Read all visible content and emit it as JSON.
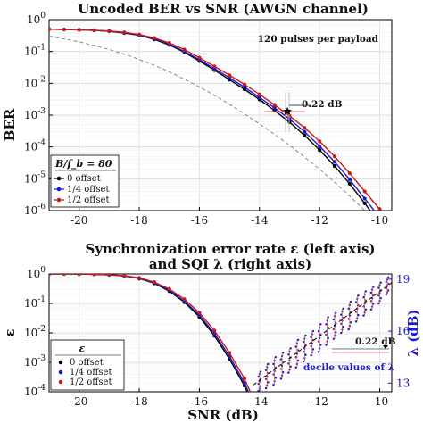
{
  "chart_data": [
    {
      "type": "line",
      "title": "Uncoded BER vs SNR  (AWGN channel)",
      "xlabel": "",
      "ylabel": "BER",
      "yscale": "log",
      "xlim": [
        -21,
        -9.6
      ],
      "ylim": [
        1e-06,
        1
      ],
      "x_ticks": [
        "-20",
        "-18",
        "-16",
        "-14",
        "-12",
        "-10"
      ],
      "y_ticks": [
        "10^0",
        "10^-1",
        "10^-2",
        "10^-3",
        "10^-4",
        "10^-5",
        "10^-6"
      ],
      "grid": true,
      "legend": "bottom-left",
      "legend_title": "B/f_b = 80",
      "annotations": [
        "120 pulses per payload",
        "0.22 dB"
      ],
      "marker_point": {
        "x": -13,
        "y": 0.0012
      },
      "x": [
        -21,
        -20.5,
        -20,
        -19.5,
        -19,
        -18.5,
        -18,
        -17.5,
        -17,
        -16.5,
        -16,
        -15.5,
        -15,
        -14.5,
        -14,
        -13.5,
        -13,
        -12.5,
        -12,
        -11.5,
        -11,
        -10.5,
        -10
      ],
      "series": [
        {
          "name": "0 offset",
          "color": "#000000",
          "values": [
            0.5,
            0.49,
            0.48,
            0.46,
            0.43,
            0.38,
            0.32,
            0.24,
            0.16,
            0.095,
            0.05,
            0.026,
            0.013,
            0.0065,
            0.0031,
            0.0014,
            0.0006,
            0.00023,
            8e-05,
            2.5e-05,
            7e-06,
            1.7e-06,
            4e-07
          ]
        },
        {
          "name": "1/4 offset",
          "color": "#1a1acc",
          "values": [
            0.5,
            0.49,
            0.48,
            0.46,
            0.435,
            0.39,
            0.33,
            0.25,
            0.17,
            0.1,
            0.055,
            0.029,
            0.015,
            0.0076,
            0.0036,
            0.0017,
            0.00075,
            0.0003,
            0.000105,
            3.4e-05,
            9.5e-06,
            2.4e-06,
            6e-07
          ]
        },
        {
          "name": "1/2 offset",
          "color": "#cc1a1a",
          "values": [
            0.5,
            0.49,
            0.48,
            0.465,
            0.44,
            0.4,
            0.34,
            0.265,
            0.185,
            0.115,
            0.064,
            0.034,
            0.018,
            0.0092,
            0.0045,
            0.0021,
            0.00095,
            0.0004,
            0.00015,
            5e-05,
            1.5e-05,
            4e-06,
            1.1e-06
          ]
        },
        {
          "name": "",
          "color": "#888888",
          "dashed": true,
          "values": [
            0.3,
            0.25,
            0.2,
            0.155,
            0.115,
            0.082,
            0.056,
            0.037,
            0.023,
            0.0135,
            0.0077,
            0.0042,
            0.0022,
            0.0011,
            0.00053,
            0.00025,
            0.000112,
            4.8e-05,
            2e-05,
            7.8e-06,
            2.9e-06,
            1e-06,
            3.5e-07
          ]
        }
      ]
    },
    {
      "type": "line",
      "title": "Synchronization error rate ε (left axis)",
      "subtitle": "and SQI λ (right axis)",
      "xlabel": "SNR (dB)",
      "ylabel": "ε",
      "ylabel_right": "λ (dB)",
      "yscale": "log",
      "xlim": [
        -21,
        -9.6
      ],
      "ylim": [
        0.0001,
        1
      ],
      "ylim_right": [
        12.5,
        19.3
      ],
      "x_ticks": [
        "-20",
        "-18",
        "-16",
        "-14",
        "-12",
        "-10"
      ],
      "y_ticks": [
        "10^0",
        "10^-1",
        "10^-2",
        "10^-3",
        "10^-4"
      ],
      "y_ticks_right": [
        "13",
        "16",
        "19"
      ],
      "grid": true,
      "legend": "bottom-left",
      "legend_title": "ε",
      "annotations": [
        "0.22 dB",
        "decile values of λ"
      ],
      "x": [
        -21,
        -20.5,
        -20,
        -19.5,
        -19,
        -18.5,
        -18,
        -17.5,
        -17,
        -16.5,
        -16,
        -15.5,
        -15,
        -14.5,
        -14
      ],
      "series": [
        {
          "name": "0 offset",
          "color": "#000000",
          "values": [
            1,
            1,
            0.99,
            0.97,
            0.93,
            0.85,
            0.7,
            0.48,
            0.26,
            0.11,
            0.035,
            0.008,
            0.0013,
            0.00016,
            1e-05
          ]
        },
        {
          "name": "1/4 offset",
          "color": "#1a1acc",
          "values": [
            1,
            1,
            0.99,
            0.97,
            0.93,
            0.86,
            0.72,
            0.5,
            0.28,
            0.12,
            0.04,
            0.0095,
            0.0016,
            0.0002,
            1.5e-05
          ]
        },
        {
          "name": "1/2 offset",
          "color": "#cc1a1a",
          "values": [
            1,
            1,
            0.99,
            0.97,
            0.94,
            0.87,
            0.74,
            0.53,
            0.31,
            0.14,
            0.048,
            0.012,
            0.0021,
            0.00028,
            2e-05
          ]
        }
      ],
      "sqi_trend": {
        "x": [
          -14.2,
          -9.6
        ],
        "y": [
          12.9,
          18.8
        ]
      },
      "sqi_deciles": {
        "x": [
          -14,
          -13.75,
          -13.5,
          -13.25,
          -13,
          -12.75,
          -12.5,
          -12.25,
          -12,
          -11.75,
          -11.5,
          -11.25,
          -11,
          -10.75,
          -10.5,
          -10.25,
          -10,
          -9.75
        ],
        "center": [
          13.1,
          13.4,
          13.7,
          14.0,
          14.3,
          14.7,
          15.0,
          15.3,
          15.6,
          16.0,
          16.3,
          16.6,
          16.9,
          17.3,
          17.6,
          17.9,
          18.2,
          18.6
        ],
        "spread": [
          0.55,
          0.7,
          0.8,
          0.75,
          0.7,
          0.8,
          0.75,
          0.7,
          0.8,
          0.8,
          0.75,
          0.7,
          0.8,
          0.75,
          0.7,
          0.65,
          0.6,
          0.5
        ]
      }
    }
  ]
}
